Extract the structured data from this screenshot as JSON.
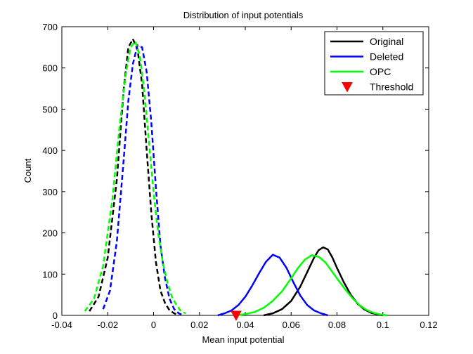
{
  "chart_data": {
    "type": "line",
    "title": "Distribution of input potentials",
    "xlabel": "Mean input potential",
    "ylabel": "Count",
    "xlim": [
      -0.04,
      0.12
    ],
    "ylim": [
      0,
      700
    ],
    "xticks": [
      -0.04,
      -0.02,
      0,
      0.02,
      0.04,
      0.06,
      0.08,
      0.1,
      0.12
    ],
    "xtick_labels": [
      "-0.04",
      "-0.02",
      "0",
      "0.02",
      "0.04",
      "0.06",
      "0.08",
      "0.1",
      "0.12"
    ],
    "yticks": [
      0,
      100,
      200,
      300,
      400,
      500,
      600,
      700
    ],
    "ytick_labels": [
      "0",
      "100",
      "200",
      "300",
      "400",
      "500",
      "600",
      "700"
    ],
    "grid": false,
    "legend_position": "top-right",
    "legend": [
      {
        "label": "Original",
        "color": "#000000",
        "marker": "line"
      },
      {
        "label": "Deleted",
        "color": "#0000ff",
        "marker": "line"
      },
      {
        "label": "OPC",
        "color": "#00ff00",
        "marker": "line"
      },
      {
        "label": "Threshold",
        "color": "#ff0000",
        "marker": "triangle-down"
      }
    ],
    "series": [
      {
        "legend_index": 0,
        "color": "#000000",
        "style": "dashed",
        "x": [
          -0.028,
          -0.024,
          -0.02,
          -0.016,
          -0.013,
          -0.011,
          -0.009,
          -0.007,
          -0.005,
          -0.003,
          -0.001,
          0.001,
          0.003,
          0.005,
          0.007,
          0.009,
          0.011
        ],
        "y": [
          10,
          45,
          140,
          330,
          550,
          650,
          670,
          645,
          560,
          400,
          250,
          130,
          60,
          30,
          12,
          5,
          0
        ]
      },
      {
        "legend_index": 1,
        "color": "#0000ff",
        "style": "dashed",
        "x": [
          -0.022,
          -0.019,
          -0.016,
          -0.013,
          -0.011,
          -0.009,
          -0.007,
          -0.005,
          -0.003,
          -0.001,
          0.001,
          0.003,
          0.005,
          0.007,
          0.009,
          0.011,
          0.013
        ],
        "y": [
          15,
          60,
          180,
          380,
          520,
          610,
          655,
          650,
          590,
          470,
          310,
          170,
          90,
          40,
          15,
          5,
          0
        ]
      },
      {
        "legend_index": 2,
        "color": "#00ff00",
        "style": "dashed",
        "x": [
          -0.03,
          -0.026,
          -0.022,
          -0.018,
          -0.015,
          -0.012,
          -0.01,
          -0.008,
          -0.006,
          -0.004,
          -0.002,
          0.0,
          0.002,
          0.004,
          0.006,
          0.008,
          0.01,
          0.012,
          0.014
        ],
        "y": [
          10,
          40,
          120,
          280,
          450,
          590,
          650,
          665,
          630,
          540,
          420,
          300,
          200,
          130,
          80,
          45,
          25,
          10,
          5
        ]
      },
      {
        "legend_index": 0,
        "color": "#000000",
        "style": "solid",
        "x": [
          0.048,
          0.052,
          0.056,
          0.06,
          0.064,
          0.067,
          0.07,
          0.072,
          0.074,
          0.076,
          0.078,
          0.08,
          0.083,
          0.086,
          0.089,
          0.092,
          0.095,
          0.098,
          0.1
        ],
        "y": [
          0,
          5,
          15,
          35,
          70,
          105,
          140,
          158,
          165,
          160,
          140,
          115,
          80,
          50,
          28,
          14,
          6,
          2,
          0
        ]
      },
      {
        "legend_index": 1,
        "color": "#0000ff",
        "style": "solid",
        "x": [
          0.028,
          0.031,
          0.034,
          0.037,
          0.04,
          0.043,
          0.046,
          0.049,
          0.052,
          0.055,
          0.058,
          0.061,
          0.064,
          0.067,
          0.07,
          0.073,
          0.076
        ],
        "y": [
          0,
          5,
          12,
          25,
          45,
          72,
          102,
          130,
          147,
          140,
          115,
          80,
          48,
          25,
          12,
          5,
          0
        ]
      },
      {
        "legend_index": 2,
        "color": "#00ff00",
        "style": "solid",
        "x": [
          0.036,
          0.04,
          0.044,
          0.048,
          0.052,
          0.056,
          0.06,
          0.063,
          0.066,
          0.069,
          0.072,
          0.075,
          0.078,
          0.081,
          0.084,
          0.087,
          0.09,
          0.093,
          0.096,
          0.099,
          0.102
        ],
        "y": [
          0,
          3,
          8,
          18,
          35,
          58,
          90,
          115,
          135,
          146,
          142,
          128,
          105,
          82,
          60,
          40,
          24,
          13,
          6,
          2,
          0
        ]
      }
    ],
    "markers": [
      {
        "legend_index": 3,
        "shape": "triangle-down",
        "color": "#ff0000",
        "x": 0.036,
        "y": 0
      }
    ]
  }
}
